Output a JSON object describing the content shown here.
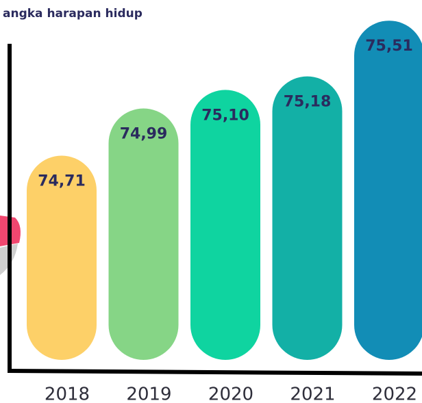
{
  "chart_data": {
    "type": "bar",
    "title": "angka harapan hidup",
    "categories": [
      "2018",
      "2019",
      "2020",
      "2021",
      "2022"
    ],
    "values": [
      74.71,
      74.99,
      75.1,
      75.18,
      75.51
    ],
    "value_labels": [
      "74,71",
      "74,99",
      "75,10",
      "75,18",
      "75,51"
    ],
    "colors": [
      "#fdd068",
      "#86d586",
      "#0fd4a0",
      "#13b0a6",
      "#128db6"
    ],
    "ylim": [
      73.5,
      75.6
    ]
  }
}
